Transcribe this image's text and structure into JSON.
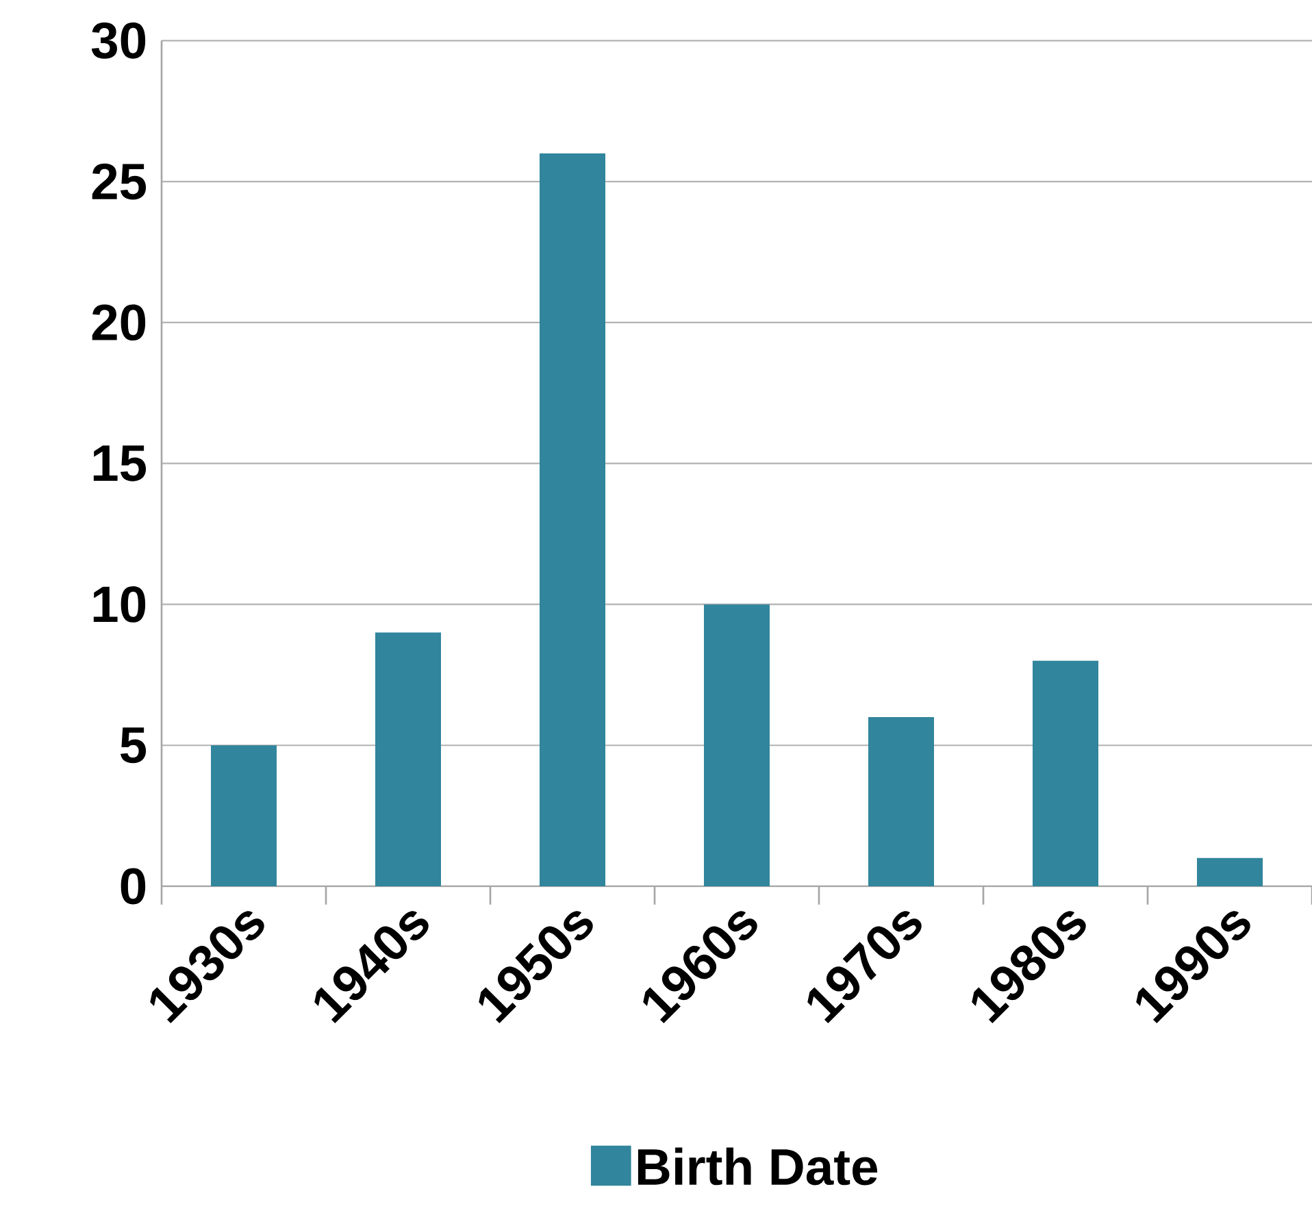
{
  "chart_data": {
    "type": "bar",
    "categories": [
      "1930s",
      "1940s",
      "1950s",
      "1960s",
      "1970s",
      "1980s",
      "1990s"
    ],
    "series": [
      {
        "name": "Birth Date",
        "color": "#31859c",
        "values": [
          5,
          9,
          26,
          10,
          6,
          8,
          1
        ]
      }
    ],
    "ylim": [
      0,
      30
    ],
    "yticks": [
      0,
      5,
      10,
      15,
      20,
      25,
      30
    ],
    "grid": "y",
    "legend": "bottom"
  }
}
